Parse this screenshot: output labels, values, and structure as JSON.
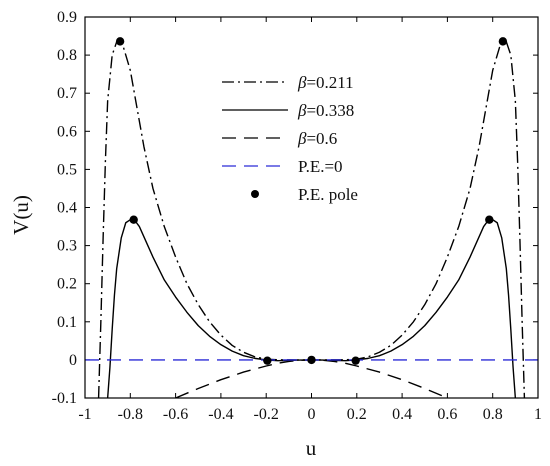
{
  "chart_data": {
    "type": "line",
    "xlabel": "u",
    "ylabel": "V(u)",
    "xlim": [
      -1,
      1
    ],
    "ylim": [
      -0.1,
      0.9
    ],
    "xticks": [
      "-1",
      "-0.8",
      "-0.6",
      "-0.4",
      "-0.2",
      "0",
      "0.2",
      "0.4",
      "0.6",
      "0.8",
      "1"
    ],
    "yticks": [
      "-0.1",
      "0",
      "0.1",
      "0.2",
      "0.3",
      "0.4",
      "0.5",
      "0.6",
      "0.7",
      "0.8",
      "0.9"
    ],
    "legend_position": "top-center",
    "series": [
      {
        "name": "=0.211",
        "symbol": "β",
        "style": "dash-dot",
        "color": "#000000",
        "x": [
          -0.94,
          -0.93,
          -0.92,
          -0.91,
          -0.9,
          -0.88,
          -0.86,
          -0.845,
          -0.83,
          -0.8,
          -0.77,
          -0.74,
          -0.7,
          -0.65,
          -0.6,
          -0.55,
          -0.5,
          -0.45,
          -0.4,
          -0.35,
          -0.3,
          -0.25,
          -0.2,
          -0.15,
          -0.1,
          -0.05,
          0,
          0.05,
          0.1,
          0.15,
          0.2,
          0.25,
          0.3,
          0.35,
          0.4,
          0.45,
          0.5,
          0.55,
          0.6,
          0.65,
          0.7,
          0.74,
          0.77,
          0.8,
          0.83,
          0.845,
          0.86,
          0.88,
          0.9,
          0.91,
          0.92,
          0.93,
          0.94
        ],
        "y": [
          -0.1,
          0.1,
          0.32,
          0.52,
          0.68,
          0.8,
          0.835,
          0.836,
          0.82,
          0.76,
          0.66,
          0.56,
          0.45,
          0.35,
          0.27,
          0.2,
          0.145,
          0.1,
          0.065,
          0.038,
          0.02,
          0.008,
          0.002,
          0.0004,
          0.0001,
          0.0,
          0.0,
          0.0,
          0.0001,
          0.0004,
          0.002,
          0.008,
          0.02,
          0.038,
          0.065,
          0.1,
          0.145,
          0.2,
          0.27,
          0.35,
          0.45,
          0.56,
          0.66,
          0.76,
          0.82,
          0.836,
          0.835,
          0.8,
          0.68,
          0.52,
          0.32,
          0.1,
          -0.1
        ]
      },
      {
        "name": "=0.338",
        "symbol": "β",
        "style": "solid",
        "color": "#000000",
        "x": [
          -0.9,
          -0.89,
          -0.88,
          -0.87,
          -0.86,
          -0.84,
          -0.82,
          -0.8,
          -0.78,
          -0.76,
          -0.73,
          -0.7,
          -0.65,
          -0.6,
          -0.55,
          -0.5,
          -0.45,
          -0.4,
          -0.35,
          -0.3,
          -0.25,
          -0.2,
          -0.15,
          -0.1,
          -0.05,
          0,
          0.05,
          0.1,
          0.15,
          0.2,
          0.25,
          0.3,
          0.35,
          0.4,
          0.45,
          0.5,
          0.55,
          0.6,
          0.65,
          0.7,
          0.73,
          0.76,
          0.78,
          0.8,
          0.82,
          0.84,
          0.86,
          0.87,
          0.88,
          0.89,
          0.9
        ],
        "y": [
          -0.1,
          -0.02,
          0.08,
          0.17,
          0.24,
          0.32,
          0.36,
          0.368,
          0.366,
          0.35,
          0.31,
          0.27,
          0.21,
          0.165,
          0.125,
          0.09,
          0.062,
          0.04,
          0.023,
          0.011,
          0.004,
          0.0,
          -0.002,
          -0.0015,
          -0.0005,
          0.0,
          -0.0005,
          -0.0015,
          -0.002,
          0.0,
          0.004,
          0.011,
          0.023,
          0.04,
          0.062,
          0.09,
          0.125,
          0.165,
          0.21,
          0.27,
          0.31,
          0.35,
          0.366,
          0.368,
          0.36,
          0.32,
          0.24,
          0.17,
          0.08,
          -0.02,
          -0.1
        ]
      },
      {
        "name": "=0.6",
        "symbol": "β",
        "style": "dashed",
        "color": "#000000",
        "x": [
          -0.6,
          -0.5,
          -0.4,
          -0.3,
          -0.2,
          -0.15,
          -0.1,
          -0.05,
          0,
          0.05,
          0.1,
          0.15,
          0.2,
          0.3,
          0.4,
          0.5,
          0.6
        ],
        "y": [
          -0.1,
          -0.075,
          -0.052,
          -0.032,
          -0.016,
          -0.009,
          -0.004,
          -0.001,
          0.0,
          -0.001,
          -0.004,
          -0.009,
          -0.016,
          -0.032,
          -0.052,
          -0.075,
          -0.1
        ]
      },
      {
        "name": "P.E.=0",
        "style": "dashed",
        "color": "#2b2bd6",
        "x": [
          -1,
          1
        ],
        "y": [
          0,
          0
        ]
      }
    ],
    "poles": {
      "name": "P.E. pole",
      "color": "#000000",
      "x": [
        -0.845,
        0.845,
        -0.785,
        0.785,
        -0.195,
        0,
        0.195
      ],
      "y": [
        0.836,
        0.836,
        0.368,
        0.368,
        -0.002,
        0,
        -0.002
      ]
    }
  }
}
